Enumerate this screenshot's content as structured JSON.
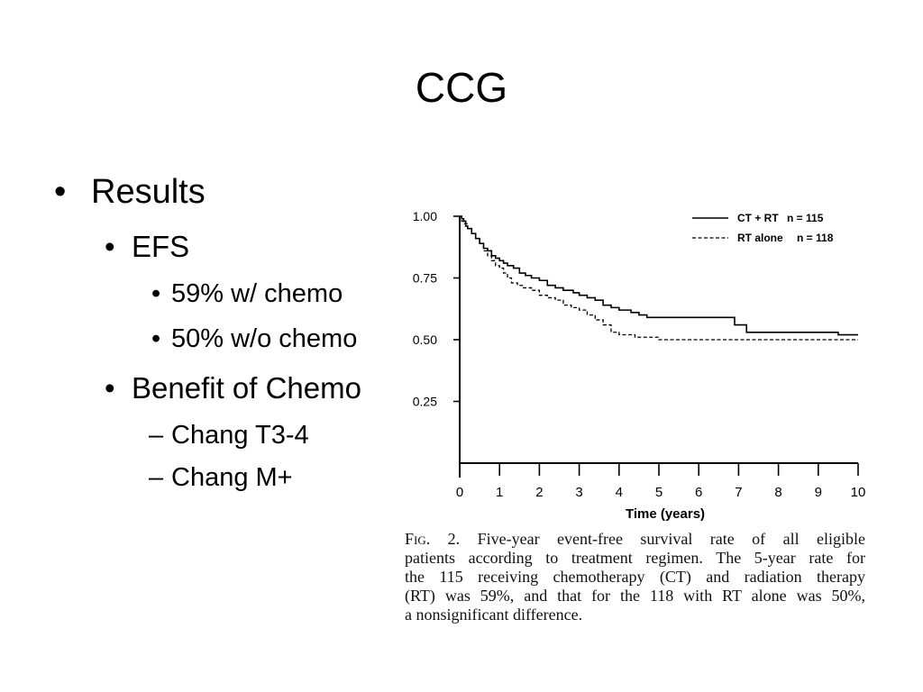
{
  "slide": {
    "title": "CCG",
    "bullets": [
      {
        "marker": "•",
        "text": "Results"
      },
      {
        "marker": "•",
        "text": "EFS"
      },
      {
        "marker": "•",
        "text": "59% w/ chemo"
      },
      {
        "marker": "•",
        "text": "50% w/o chemo"
      },
      {
        "marker": "•",
        "text": "Benefit of Chemo"
      },
      {
        "marker": "–",
        "text": "Chang T3-4"
      },
      {
        "marker": "–",
        "text": "Chang M+"
      }
    ]
  },
  "figure": {
    "caption": {
      "label": "Fig. 2.",
      "lines": [
        "Five-year event-free survival rate of all eligible",
        "patients according to treatment regimen. The 5-year rate for",
        "the 115 receiving chemotherapy (CT) and radiation therapy",
        "(RT) was 59%, and that for the 118 with RT alone was 50%,",
        "a nonsignificant difference."
      ]
    }
  },
  "colors": {
    "background": "#ffffff",
    "text": "#000000"
  },
  "chart_data": {
    "type": "line",
    "line_shape": "step",
    "xlabel": "Time (years)",
    "xlim": [
      0,
      10
    ],
    "ylim": [
      0,
      1
    ],
    "x_ticks": [
      "0",
      "1",
      "2",
      "3",
      "4",
      "5",
      "6",
      "7",
      "8",
      "9",
      "10"
    ],
    "y_ticks": [
      "1.00",
      "0.75",
      "0.50",
      "0.25"
    ],
    "grid": false,
    "legend_position": "top-right",
    "series": [
      {
        "name": "CT + RT",
        "n_label": "n = 115",
        "line_style": "solid",
        "color": "#000000",
        "points": [
          [
            0,
            1.0
          ],
          [
            0.05,
            0.99
          ],
          [
            0.1,
            0.98
          ],
          [
            0.15,
            0.96
          ],
          [
            0.2,
            0.95
          ],
          [
            0.3,
            0.93
          ],
          [
            0.4,
            0.91
          ],
          [
            0.5,
            0.89
          ],
          [
            0.6,
            0.87
          ],
          [
            0.7,
            0.86
          ],
          [
            0.8,
            0.84
          ],
          [
            0.9,
            0.83
          ],
          [
            1.0,
            0.82
          ],
          [
            1.1,
            0.81
          ],
          [
            1.2,
            0.8
          ],
          [
            1.35,
            0.79
          ],
          [
            1.5,
            0.77
          ],
          [
            1.65,
            0.76
          ],
          [
            1.8,
            0.75
          ],
          [
            2.0,
            0.74
          ],
          [
            2.2,
            0.72
          ],
          [
            2.4,
            0.71
          ],
          [
            2.6,
            0.7
          ],
          [
            2.85,
            0.69
          ],
          [
            3.0,
            0.68
          ],
          [
            3.2,
            0.67
          ],
          [
            3.4,
            0.66
          ],
          [
            3.6,
            0.64
          ],
          [
            3.8,
            0.63
          ],
          [
            4.0,
            0.62
          ],
          [
            4.3,
            0.61
          ],
          [
            4.5,
            0.6
          ],
          [
            4.7,
            0.59
          ],
          [
            6.9,
            0.56
          ],
          [
            7.2,
            0.53
          ],
          [
            9.5,
            0.52
          ],
          [
            10.0,
            0.52
          ]
        ]
      },
      {
        "name": "RT alone",
        "n_label": "n = 118",
        "line_style": "dashed",
        "color": "#000000",
        "points": [
          [
            0,
            1.0
          ],
          [
            0.05,
            0.98
          ],
          [
            0.1,
            0.97
          ],
          [
            0.2,
            0.95
          ],
          [
            0.3,
            0.93
          ],
          [
            0.4,
            0.91
          ],
          [
            0.5,
            0.89
          ],
          [
            0.6,
            0.86
          ],
          [
            0.7,
            0.84
          ],
          [
            0.8,
            0.82
          ],
          [
            0.9,
            0.8
          ],
          [
            1.0,
            0.79
          ],
          [
            1.1,
            0.77
          ],
          [
            1.2,
            0.75
          ],
          [
            1.3,
            0.73
          ],
          [
            1.45,
            0.72
          ],
          [
            1.6,
            0.71
          ],
          [
            1.8,
            0.7
          ],
          [
            2.0,
            0.68
          ],
          [
            2.2,
            0.67
          ],
          [
            2.4,
            0.66
          ],
          [
            2.6,
            0.64
          ],
          [
            2.8,
            0.63
          ],
          [
            3.0,
            0.62
          ],
          [
            3.2,
            0.6
          ],
          [
            3.4,
            0.58
          ],
          [
            3.6,
            0.56
          ],
          [
            3.8,
            0.53
          ],
          [
            4.0,
            0.52
          ],
          [
            4.4,
            0.51
          ],
          [
            5.0,
            0.5
          ],
          [
            10.0,
            0.5
          ]
        ]
      }
    ]
  }
}
